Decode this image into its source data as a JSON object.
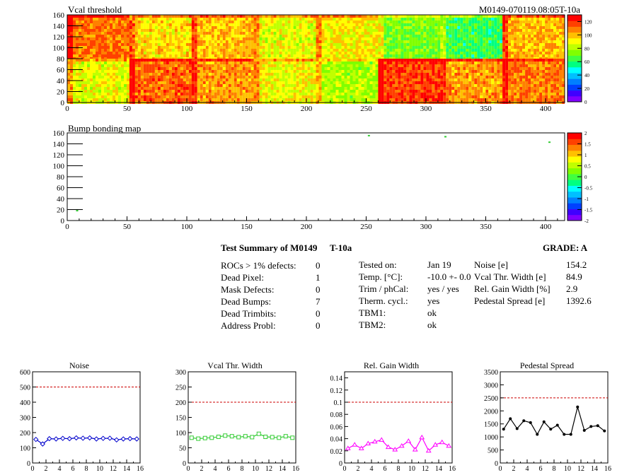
{
  "header": {
    "title": "Vcal threshold",
    "module_id": "M0149-070119.08:05T-10a"
  },
  "colors": {
    "palette": [
      "#8000ff",
      "#4000ff",
      "#0040ff",
      "#0080ff",
      "#00c0ff",
      "#00ffff",
      "#00ff80",
      "#40ff40",
      "#80ff00",
      "#c0ff00",
      "#ffff00",
      "#ffc000",
      "#ff8000",
      "#ff4000",
      "#ff0000"
    ],
    "noise": "#0000cc",
    "vcal": "#33cc33",
    "gain": "#ff00ff",
    "pedestal": "#000000",
    "limit": "#cc0000"
  },
  "chart_data": [
    {
      "type": "heatmap",
      "title": "Vcal threshold",
      "xlim": [
        0,
        416
      ],
      "ylim": [
        0,
        160
      ],
      "xticks": [
        0,
        50,
        100,
        150,
        200,
        250,
        300,
        350,
        400
      ],
      "yticks": [
        0,
        20,
        40,
        60,
        80,
        100,
        120,
        140,
        160
      ],
      "zlim": [
        0,
        130
      ],
      "zticks": [
        0,
        20,
        40,
        60,
        80,
        100,
        120
      ],
      "grid": false,
      "roc_columns": 8,
      "roc_rows": 2,
      "roc_mean_values": {
        "top": [
          110,
          95,
          100,
          88,
          92,
          72,
          62,
          100
        ],
        "bottom": [
          88,
          112,
          105,
          90,
          80,
          118,
          105,
          110
        ]
      }
    },
    {
      "type": "heatmap",
      "title": "Bump bonding map",
      "xlim": [
        0,
        416
      ],
      "ylim": [
        0,
        160
      ],
      "xticks": [
        0,
        50,
        100,
        150,
        200,
        250,
        300,
        350,
        400
      ],
      "yticks": [
        0,
        20,
        40,
        60,
        80,
        100,
        120,
        140,
        160
      ],
      "zlim": [
        -2,
        2
      ],
      "zticks": [
        -2,
        -1.5,
        -1,
        -0.5,
        0,
        0.5,
        1,
        1.5,
        2
      ],
      "points": [
        {
          "x": 8,
          "y": 18
        },
        {
          "x": 252,
          "y": 155
        },
        {
          "x": 316,
          "y": 153
        },
        {
          "x": 403,
          "y": 143
        }
      ]
    },
    {
      "type": "line",
      "title": "Noise",
      "x": [
        0,
        1,
        2,
        3,
        4,
        5,
        6,
        7,
        8,
        9,
        10,
        11,
        12,
        13,
        14,
        15
      ],
      "series": [
        {
          "values": [
            155,
            125,
            160,
            158,
            162,
            160,
            165,
            163,
            165,
            158,
            162,
            163,
            152,
            158,
            160,
            158
          ]
        }
      ],
      "xlim": [
        0,
        16
      ],
      "ylim": [
        0,
        600
      ],
      "xticks": [
        0,
        2,
        4,
        6,
        8,
        10,
        12,
        14,
        16
      ],
      "yticks": [
        0,
        100,
        200,
        300,
        400,
        500,
        600
      ],
      "limit": 500,
      "marker": "diamond"
    },
    {
      "type": "line",
      "title": "Vcal Thr. Width",
      "x": [
        0,
        1,
        2,
        3,
        4,
        5,
        6,
        7,
        8,
        9,
        10,
        11,
        12,
        13,
        14,
        15
      ],
      "series": [
        {
          "values": [
            83,
            80,
            82,
            83,
            86,
            90,
            88,
            85,
            88,
            85,
            96,
            86,
            85,
            83,
            88,
            83
          ]
        }
      ],
      "xlim": [
        0,
        16
      ],
      "ylim": [
        0,
        300
      ],
      "xticks": [
        0,
        2,
        4,
        6,
        8,
        10,
        12,
        14,
        16
      ],
      "yticks": [
        0,
        50,
        100,
        150,
        200,
        250,
        300
      ],
      "limit": 200,
      "marker": "square"
    },
    {
      "type": "line",
      "title": "Rel. Gain Width",
      "x": [
        0,
        1,
        2,
        3,
        4,
        5,
        6,
        7,
        8,
        9,
        10,
        11,
        12,
        13,
        14,
        15
      ],
      "series": [
        {
          "values": [
            0.024,
            0.03,
            0.024,
            0.032,
            0.035,
            0.038,
            0.026,
            0.022,
            0.028,
            0.036,
            0.022,
            0.042,
            0.02,
            0.03,
            0.034,
            0.028
          ]
        }
      ],
      "xlim": [
        0,
        16
      ],
      "ylim": [
        0,
        0.15
      ],
      "xticks": [
        0,
        2,
        4,
        6,
        8,
        10,
        12,
        14,
        16
      ],
      "yticks": [
        0,
        0.02,
        0.04,
        0.06,
        0.08,
        0.1,
        0.12,
        0.14
      ],
      "limit": 0.1,
      "marker": "triangle"
    },
    {
      "type": "line",
      "title": "Pedestal Spread",
      "x": [
        0,
        1,
        2,
        3,
        4,
        5,
        6,
        7,
        8,
        9,
        10,
        11,
        12,
        13,
        14,
        15
      ],
      "series": [
        {
          "values": [
            1300,
            1700,
            1320,
            1620,
            1550,
            1100,
            1580,
            1300,
            1450,
            1100,
            1100,
            2150,
            1250,
            1400,
            1430,
            1230
          ]
        }
      ],
      "xlim": [
        0,
        16
      ],
      "ylim": [
        0,
        3500
      ],
      "xticks": [
        0,
        2,
        4,
        6,
        8,
        10,
        12,
        14,
        16
      ],
      "yticks": [
        0,
        500,
        1000,
        1500,
        2000,
        2500,
        3000,
        3500
      ],
      "limit": 2500,
      "marker": "dot"
    }
  ],
  "summary": {
    "heading": "Test Summary of M0149",
    "temp_label": "T-10a",
    "grade": "GRADE:  A",
    "defects": [
      {
        "label": "ROCs > 1% defects:",
        "value": "0"
      },
      {
        "label": "Dead Pixel:",
        "value": "1"
      },
      {
        "label": "Mask Defects:",
        "value": "0"
      },
      {
        "label": "Dead Bumps:",
        "value": "7"
      },
      {
        "label": "Dead Trimbits:",
        "value": "0"
      },
      {
        "label": "Address Probl:",
        "value": "0"
      }
    ],
    "conditions": [
      {
        "label": "Tested on:",
        "value": "Jan 19"
      },
      {
        "label": "Temp. [°C]:",
        "value": "-10.0 +- 0.0"
      },
      {
        "label": "Trim / phCal:",
        "value": "yes / yes"
      },
      {
        "label": "Therm. cycl.:",
        "value": "yes"
      },
      {
        "label": "TBM1:",
        "value": "ok"
      },
      {
        "label": "TBM2:",
        "value": "ok"
      }
    ],
    "results": [
      {
        "label": "Noise [e]",
        "value": "154.2"
      },
      {
        "label": "Vcal Thr. Width [e]",
        "value": "84.9"
      },
      {
        "label": "Rel. Gain Width [%]",
        "value": "2.9"
      },
      {
        "label": "Pedestal Spread [e]",
        "value": "1392.6"
      }
    ]
  }
}
